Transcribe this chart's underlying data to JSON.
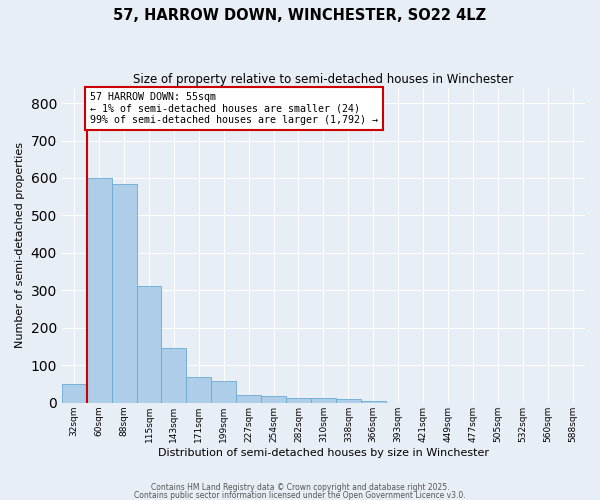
{
  "title1": "57, HARROW DOWN, WINCHESTER, SO22 4LZ",
  "title2": "Size of property relative to semi-detached houses in Winchester",
  "xlabel": "Distribution of semi-detached houses by size in Winchester",
  "ylabel": "Number of semi-detached properties",
  "categories": [
    "32sqm",
    "60sqm",
    "88sqm",
    "115sqm",
    "143sqm",
    "171sqm",
    "199sqm",
    "227sqm",
    "254sqm",
    "282sqm",
    "310sqm",
    "338sqm",
    "366sqm",
    "393sqm",
    "421sqm",
    "449sqm",
    "477sqm",
    "505sqm",
    "532sqm",
    "560sqm",
    "588sqm"
  ],
  "values": [
    50,
    600,
    585,
    313,
    145,
    68,
    58,
    20,
    18,
    12,
    12,
    10,
    5,
    0,
    0,
    0,
    0,
    0,
    0,
    0,
    0
  ],
  "bar_color": "#aecde8",
  "bar_edge_color": "#6aaad4",
  "background_color": "#e8eef6",
  "grid_color": "#ffffff",
  "vline_color": "#cc0000",
  "annotation_text": "57 HARROW DOWN: 55sqm\n← 1% of semi-detached houses are smaller (24)\n99% of semi-detached houses are larger (1,792) →",
  "annotation_box_color": "#ffffff",
  "annotation_box_edge": "#cc0000",
  "ylim": [
    0,
    840
  ],
  "yticks": [
    0,
    100,
    200,
    300,
    400,
    500,
    600,
    700,
    800
  ],
  "footer1": "Contains HM Land Registry data © Crown copyright and database right 2025.",
  "footer2": "Contains public sector information licensed under the Open Government Licence v3.0."
}
